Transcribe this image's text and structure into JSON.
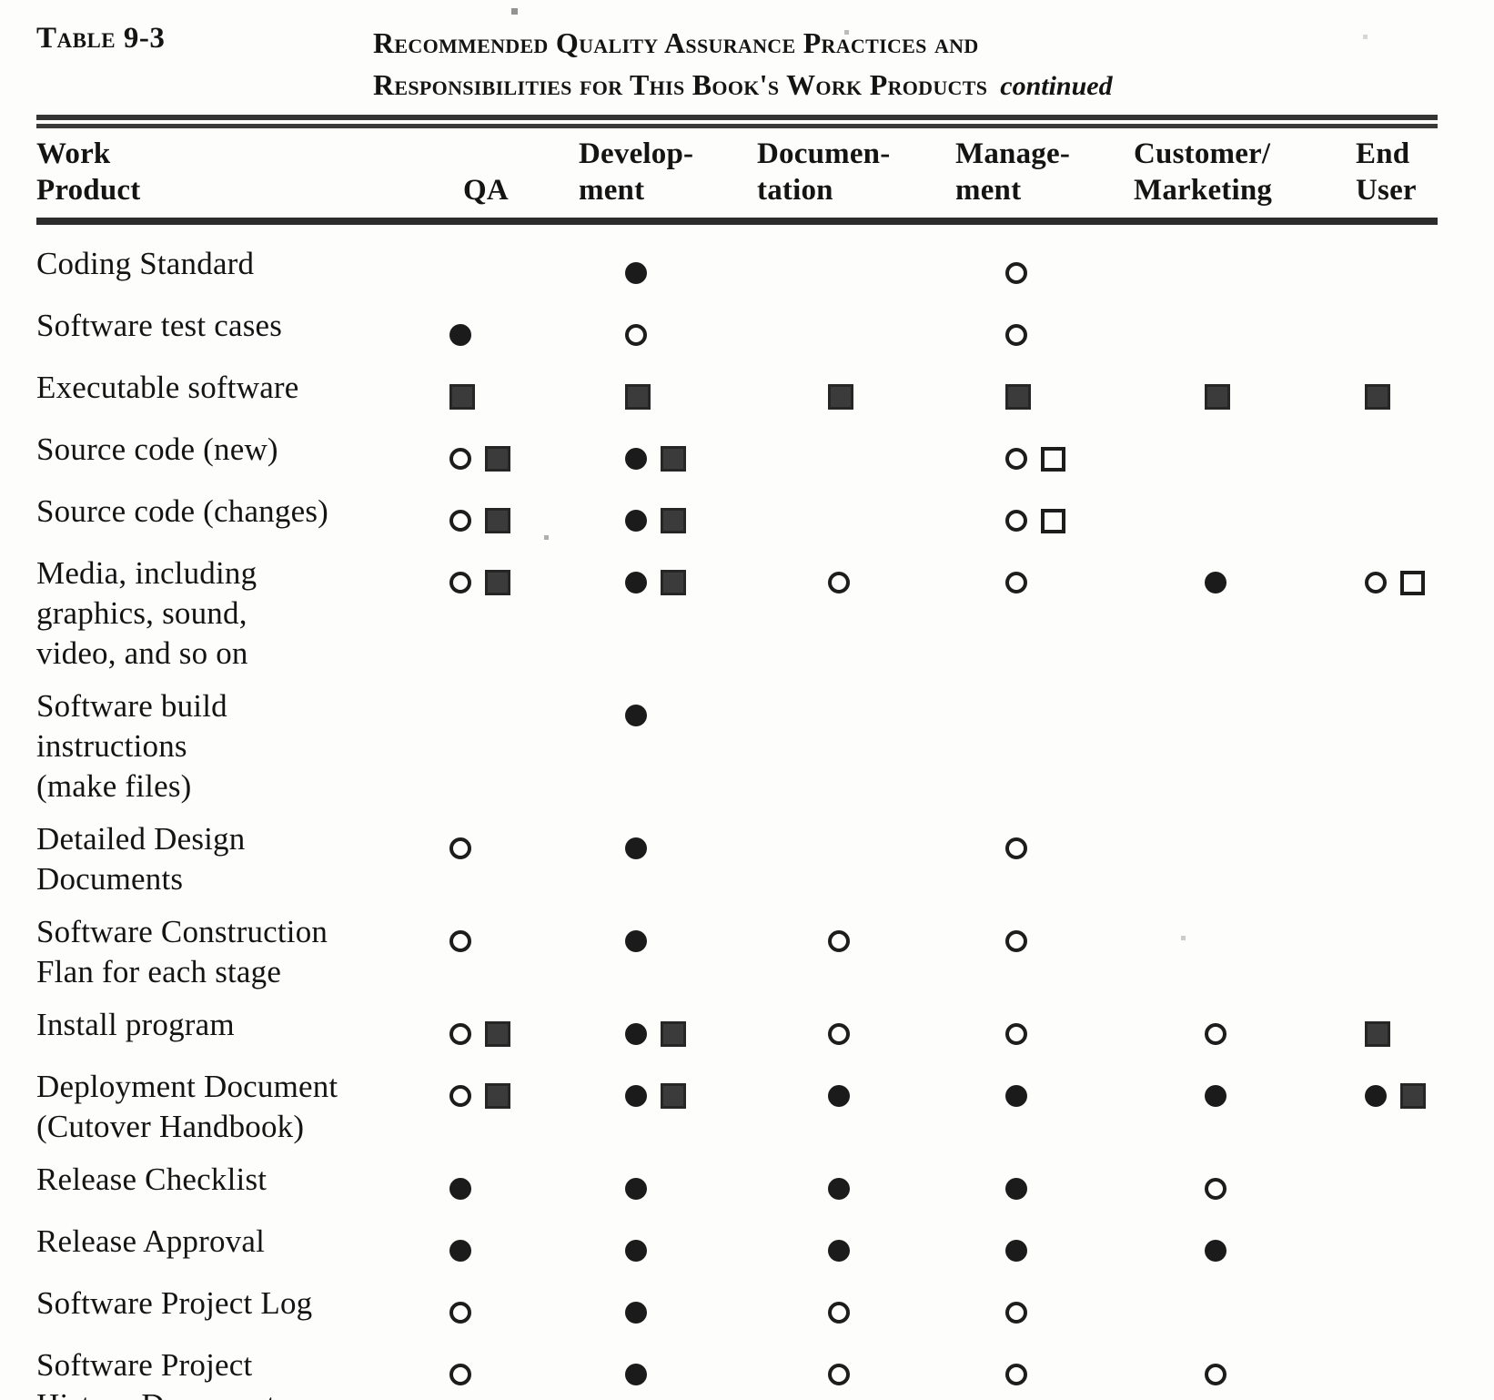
{
  "caption": {
    "table_label": "Table 9-3",
    "title_line1": "Recommended Quality Assurance Practices and",
    "title_line2": "Responsibilities for This Book's Work Products",
    "continued_label": "continued"
  },
  "table": {
    "columns": [
      {
        "id": "work-product",
        "label": "Work\nProduct"
      },
      {
        "id": "qa",
        "label": "QA"
      },
      {
        "id": "development",
        "label": "Develop-\nment"
      },
      {
        "id": "documentation",
        "label": "Documen-\ntation"
      },
      {
        "id": "management",
        "label": "Manage-\nment"
      },
      {
        "id": "customer-marketing",
        "label": "Customer/\nMarketing"
      },
      {
        "id": "end-user",
        "label": "End\nUser"
      }
    ],
    "symbols": {
      "fc": "filled-circle",
      "oc": "open-circle",
      "fs": "filled-square",
      "os": "open-square"
    },
    "rows": [
      {
        "product": "Coding Standard",
        "cells": [
          "",
          "fc",
          "",
          "oc",
          "",
          ""
        ]
      },
      {
        "product": "Software test cases",
        "cells": [
          "fc",
          "oc",
          "",
          "oc",
          "",
          ""
        ]
      },
      {
        "product": "Executable software",
        "cells": [
          "fs",
          "fs",
          "fs",
          "fs",
          "fs",
          "fs"
        ]
      },
      {
        "product": "Source code (new)",
        "cells": [
          "oc fs",
          "fc fs",
          "",
          "oc os",
          "",
          ""
        ]
      },
      {
        "product": "Source code (changes)",
        "cells": [
          "oc fs",
          "fc fs",
          "",
          "oc os",
          "",
          ""
        ]
      },
      {
        "product": "Media, including\ngraphics, sound,\nvideo, and so on",
        "cells": [
          "oc fs",
          "fc fs",
          "oc",
          "oc",
          "fc",
          "oc os"
        ]
      },
      {
        "product": "Software build\ninstructions\n(make files)",
        "cells": [
          "",
          "fc",
          "",
          "",
          "",
          ""
        ]
      },
      {
        "product": "Detailed Design\nDocuments",
        "cells": [
          "oc",
          "fc",
          "",
          "oc",
          "",
          ""
        ]
      },
      {
        "product": "Software Construction\nFlan for each stage",
        "cells": [
          "oc",
          "fc",
          "oc",
          "oc",
          "",
          ""
        ]
      },
      {
        "product": "Install program",
        "cells": [
          "oc fs",
          "fc fs",
          "oc",
          "oc",
          "oc",
          "fs"
        ]
      },
      {
        "product": "Deployment Document\n(Cutover Handbook)",
        "cells": [
          "oc fs",
          "fc fs",
          "fc",
          "fc",
          "fc",
          "fc fs"
        ]
      },
      {
        "product": "Release Checklist",
        "cells": [
          "fc",
          "fc",
          "fc",
          "fc",
          "oc",
          ""
        ]
      },
      {
        "product": "Release Approval",
        "cells": [
          "fc",
          "fc",
          "fc",
          "fc",
          "fc",
          ""
        ]
      },
      {
        "product": "Software Project Log",
        "cells": [
          "oc",
          "fc",
          "oc",
          "oc",
          "",
          ""
        ]
      },
      {
        "product": "Software Project\nHistory Document",
        "cells": [
          "oc",
          "fc",
          "oc",
          "oc",
          "oc",
          ""
        ]
      }
    ]
  }
}
